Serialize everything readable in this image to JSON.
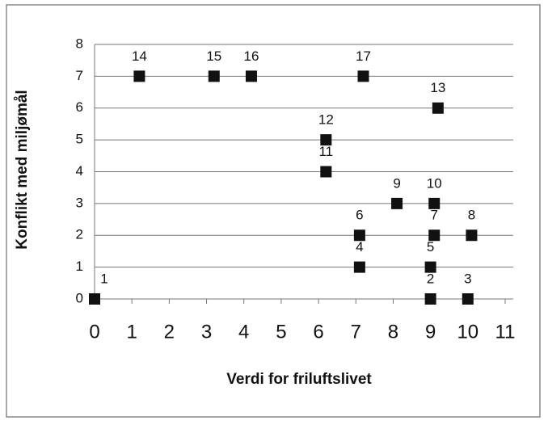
{
  "chart_data": {
    "type": "scatter",
    "xlabel": "Verdi for friluftslivet",
    "ylabel": "Konflikt med miljømål",
    "x": [
      0,
      9,
      10,
      7.1,
      9,
      7.1,
      9.1,
      10.1,
      8.1,
      9.1,
      6.2,
      6.2,
      9.2,
      1.2,
      3.2,
      4.2,
      7.2
    ],
    "values": [
      0,
      0,
      0,
      1,
      1,
      2,
      2,
      2,
      3,
      3,
      4,
      5,
      6,
      7,
      7,
      7,
      7
    ],
    "labels": [
      "1",
      "2",
      "3",
      "4",
      "5",
      "6",
      "7",
      "8",
      "9",
      "10",
      "11",
      "12",
      "13",
      "14",
      "15",
      "16",
      "17"
    ],
    "color": "#111111",
    "xlim": [
      0,
      11
    ],
    "xticks": [
      0,
      1,
      2,
      3,
      4,
      5,
      6,
      7,
      8,
      9,
      10,
      11
    ],
    "ylim": [
      0,
      8
    ],
    "yticks": [
      0,
      1,
      2,
      3,
      4,
      5,
      6,
      7,
      8
    ],
    "grid": true
  }
}
